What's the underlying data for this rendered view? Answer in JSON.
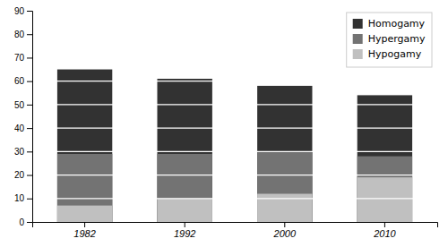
{
  "chart_data": {
    "type": "bar",
    "categories": [
      "1982",
      "1992",
      "2000",
      "2010"
    ],
    "series": [
      {
        "name": "Homogamy",
        "color": "#323232",
        "values": [
          65,
          61,
          58,
          54
        ]
      },
      {
        "name": "Hypergamy",
        "color": "#737373",
        "values": [
          29,
          29,
          30,
          28
        ]
      },
      {
        "name": "Hypogamy",
        "color": "#c0c0c0",
        "values": [
          7,
          10,
          12,
          19
        ]
      }
    ],
    "ylim": [
      0,
      90
    ],
    "yticks": [
      0,
      10,
      20,
      30,
      40,
      50,
      60,
      70,
      80,
      90
    ],
    "grid": true,
    "legend": "upper right"
  }
}
